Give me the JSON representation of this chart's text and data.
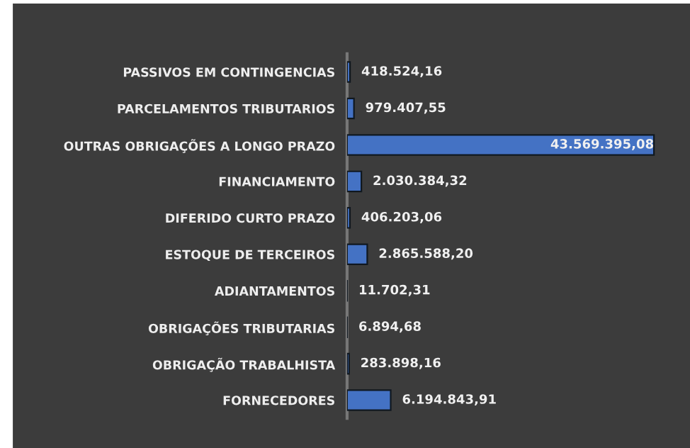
{
  "chart_data": {
    "type": "bar",
    "orientation": "horizontal",
    "categories": [
      "PASSIVOS EM CONTINGENCIAS",
      "PARCELAMENTOS TRIBUTARIOS",
      "OUTRAS OBRIGAÇÕES A LONGO PRAZO",
      "FINANCIAMENTO",
      "DIFERIDO CURTO PRAZO",
      "ESTOQUE DE TERCEIROS",
      "ADIANTAMENTOS",
      "OBRIGAÇÕES TRIBUTARIAS",
      "OBRIGAÇÃO TRABALHISTA",
      "FORNECEDORES"
    ],
    "values": [
      418524.16,
      979407.55,
      43569395.08,
      2030384.32,
      406203.06,
      2865588.2,
      11702.31,
      6894.68,
      283898.16,
      6194843.91
    ],
    "value_labels": [
      "418.524,16",
      "979.407,55",
      "43.569.395,08",
      "2.030.384,32",
      "406.203,06",
      "2.865.588,20",
      "11.702,31",
      "6.894,68",
      "283.898,16",
      "6.194.843,91"
    ],
    "color": "#4472c4",
    "legend": false
  }
}
